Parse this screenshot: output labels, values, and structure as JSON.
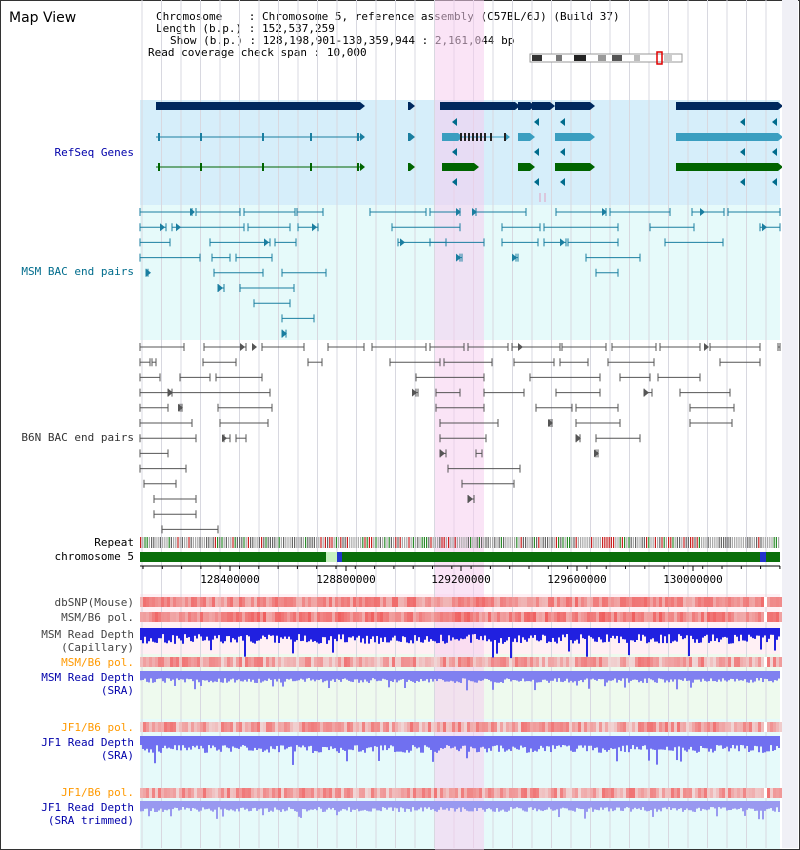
{
  "view": {
    "title": "Map View",
    "info": {
      "chromosome_label": "Chromosome",
      "chromosome_value": "Chromosome 5, reference assembly (C57BL/6J) (Build 37)",
      "length_label": "Length (b.p.)",
      "length_value": "152,537,259",
      "show_label": "Show (b.p.)",
      "show_value": "128,198,901-130,359,944 : 2,161,044 bp",
      "coverage_label": "Read coverage check span",
      "coverage_value": "10,000"
    }
  },
  "tracks": {
    "refseq": "RefSeq Genes",
    "msm_bac": "MSM BAC end pairs",
    "b6n_bac": "B6N BAC end pairs",
    "repeat": "Repeat",
    "chromosome": "chromosome 5",
    "dbsnp": "dbSNP(Mouse)",
    "msm_b6_pol_1": "MSM/B6 pol.",
    "msm_depth_cap_1": "MSM Read Depth",
    "msm_depth_cap_2": "(Capillary)",
    "msm_b6_pol_2": "MSM/B6 pol.",
    "msm_depth_sra_1": "MSM Read Depth",
    "msm_depth_sra_2": "(SRA)",
    "jf1_b6_pol_1": "JF1/B6 pol.",
    "jf1_depth_sra_1": "JF1 Read Depth",
    "jf1_depth_sra_2": "(SRA)",
    "jf1_b6_pol_2": "JF1/B6 pol.",
    "jf1_depth_trim_1": "JF1 Read Depth",
    "jf1_depth_trim_2": "(SRA trimmed)"
  },
  "ruler": {
    "ticks": [
      "128400000",
      "128800000",
      "129200000",
      "129600000",
      "130000000"
    ]
  },
  "colors": {
    "refseq_label": "#0000aa",
    "msm_bac_label": "#006c8c",
    "b6n_bac_label": "#333333",
    "orange_label": "#ff9900",
    "blue_label": "#0000aa",
    "highlight": "#f7d9f3"
  }
}
